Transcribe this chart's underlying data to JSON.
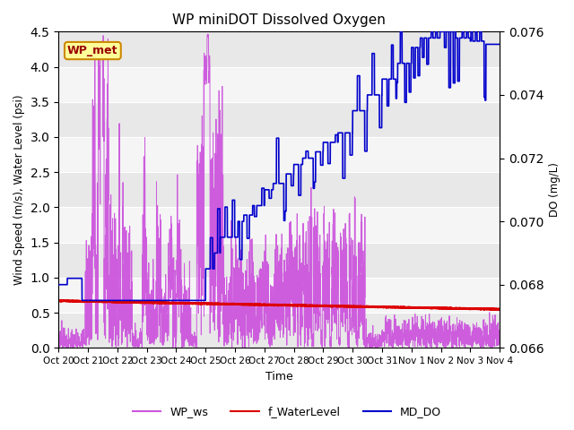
{
  "title": "WP miniDOT Dissolved Oxygen",
  "xlabel": "Time",
  "ylabel_left": "Wind Speed (m/s), Water Level (psi)",
  "ylabel_right": "DO (mg/L)",
  "ylim_left": [
    0.0,
    4.5
  ],
  "ylim_right": [
    0.066,
    0.076
  ],
  "yticks_left": [
    0.0,
    0.5,
    1.0,
    1.5,
    2.0,
    2.5,
    3.0,
    3.5,
    4.0,
    4.5
  ],
  "yticks_right": [
    0.066,
    0.068,
    0.07,
    0.072,
    0.074,
    0.076
  ],
  "ytick_right_labels": [
    "0.066",
    "0.068",
    "0.070",
    "0.072",
    "0.074",
    "0.076"
  ],
  "bg_color": "#ffffff",
  "plot_bg_alternating": [
    "#e8e8e8",
    "#f5f5f5"
  ],
  "annotation_text": "WP_met",
  "annotation_bg": "#ffff99",
  "annotation_border": "#cc8800",
  "annotation_text_color": "#990000",
  "wp_ws_color": "#cc55dd",
  "f_wl_color": "#dd0000",
  "md_do_color": "#0000cc",
  "xtick_labels": [
    "Oct 20",
    "Oct 21",
    "Oct 22",
    "Oct 23",
    "Oct 24",
    "Oct 25",
    "Oct 26",
    "Oct 27",
    "Oct 28",
    "Oct 29",
    "Oct 30",
    "Oct 31",
    "Nov 1",
    "Nov 2",
    "Nov 3",
    "Nov 4"
  ],
  "legend_entries": [
    "WP_ws",
    "f_WaterLevel",
    "MD_DO"
  ],
  "legend_colors": [
    "#cc55dd",
    "#dd0000",
    "#0000cc"
  ]
}
